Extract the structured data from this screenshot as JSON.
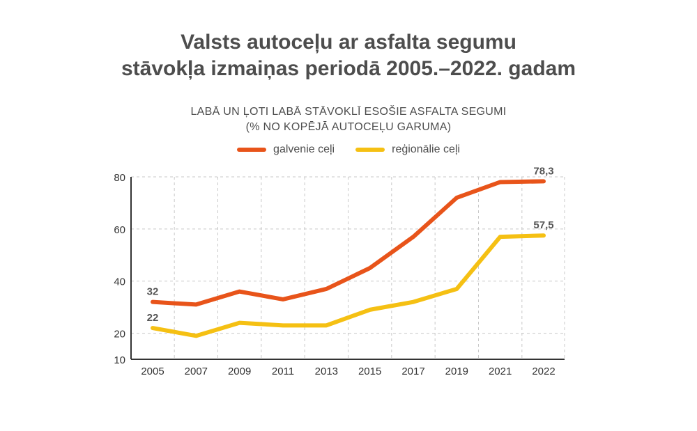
{
  "title_line1": "Valsts autoceļu ar asfalta segumu",
  "title_line2": "stāvokļa izmaiņas periodā 2005.–2022. gadam",
  "subtitle_line1": "LABĀ UN ĻOTI LABĀ STĀVOKLĪ ESOŠIE ASFALTA SEGUMI",
  "subtitle_line2": "(% NO KOPĒJĀ AUTOCEĻU GARUMA)",
  "colors": {
    "galvenie": "#e8541a",
    "regionalie": "#f5c013",
    "grid": "#c8c8c8",
    "axis": "#333333"
  },
  "chart_data": {
    "type": "line",
    "x": [
      "2005",
      "2007",
      "2009",
      "2011",
      "2013",
      "2015",
      "2017",
      "2019",
      "2021",
      "2022"
    ],
    "series": [
      {
        "name": "galvenie ceļi",
        "values": [
          32,
          31,
          36,
          33,
          37,
          45,
          57,
          72,
          78,
          78.3
        ]
      },
      {
        "name": "reģionālie ceļi",
        "values": [
          22,
          19,
          24,
          23,
          23,
          29,
          32,
          37,
          57,
          57.5
        ]
      }
    ],
    "yticks": [
      "10",
      "20",
      "40",
      "60",
      "80"
    ],
    "ylim": [
      10,
      80
    ],
    "grid": true,
    "legend_position": "top-center",
    "labels": [
      {
        "series": 0,
        "index": 0,
        "text": "32"
      },
      {
        "series": 1,
        "index": 0,
        "text": "22"
      },
      {
        "series": 0,
        "index": 9,
        "text": "78,3"
      },
      {
        "series": 1,
        "index": 9,
        "text": "57,5"
      }
    ]
  }
}
